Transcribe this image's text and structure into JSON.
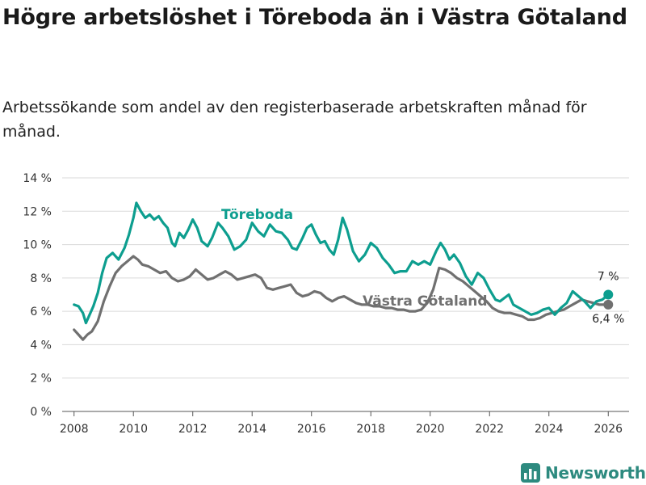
{
  "colors": {
    "toreboda": "#0d9e8f",
    "vastra": "#707070",
    "grid": "#d9d9d9",
    "axis": "#555555",
    "brand": "#2d8a7f"
  },
  "brand": {
    "name": "Newsworthy",
    "icon": "bar-chart-icon"
  },
  "chart_data": {
    "type": "line",
    "title": "Högre arbetslöshet i Töreboda än i Västra Götaland",
    "subtitle": "Arbetssökande som andel av den registerbaserade arbetskraften månad för månad.",
    "xlabel": "",
    "ylabel": "",
    "xlim": [
      2007.6,
      2026.7
    ],
    "ylim": [
      0,
      14
    ],
    "x_ticks": [
      2008,
      2010,
      2012,
      2014,
      2016,
      2018,
      2020,
      2022,
      2024,
      2026
    ],
    "y_ticks": [
      {
        "value": 0,
        "label": "0 %"
      },
      {
        "value": 2,
        "label": "2 %"
      },
      {
        "value": 4,
        "label": "4 %"
      },
      {
        "value": 6,
        "label": "6 %"
      },
      {
        "value": 8,
        "label": "8 %"
      },
      {
        "value": 10,
        "label": "10 %"
      },
      {
        "value": 12,
        "label": "12 %"
      },
      {
        "value": 14,
        "label": "14 %"
      }
    ],
    "grid": true,
    "series": [
      {
        "name": "Töreboda",
        "color": "#0d9e8f",
        "end_label": "7 %",
        "x": [
          2008.0,
          2008.15,
          2008.3,
          2008.4,
          2008.5,
          2008.65,
          2008.8,
          2008.95,
          2009.1,
          2009.3,
          2009.5,
          2009.7,
          2009.85,
          2010.0,
          2010.1,
          2010.25,
          2010.4,
          2010.55,
          2010.7,
          2010.85,
          2011.0,
          2011.15,
          2011.3,
          2011.4,
          2011.55,
          2011.7,
          2011.85,
          2012.0,
          2012.15,
          2012.3,
          2012.5,
          2012.65,
          2012.85,
          2013.0,
          2013.2,
          2013.4,
          2013.6,
          2013.8,
          2014.0,
          2014.2,
          2014.4,
          2014.6,
          2014.8,
          2015.0,
          2015.2,
          2015.35,
          2015.5,
          2015.7,
          2015.85,
          2016.0,
          2016.15,
          2016.3,
          2016.45,
          2016.6,
          2016.75,
          2016.9,
          2017.05,
          2017.2,
          2017.4,
          2017.6,
          2017.8,
          2018.0,
          2018.2,
          2018.4,
          2018.6,
          2018.8,
          2019.0,
          2019.2,
          2019.4,
          2019.6,
          2019.8,
          2020.0,
          2020.2,
          2020.35,
          2020.5,
          2020.65,
          2020.8,
          2021.0,
          2021.2,
          2021.4,
          2021.6,
          2021.8,
          2022.0,
          2022.2,
          2022.35,
          2022.5,
          2022.65,
          2022.8,
          2023.0,
          2023.2,
          2023.4,
          2023.6,
          2023.8,
          2024.0,
          2024.2,
          2024.4,
          2024.6,
          2024.8,
          2025.0,
          2025.2,
          2025.4,
          2025.6,
          2025.8,
          2026.0
        ],
        "y": [
          6.4,
          6.3,
          5.9,
          5.3,
          5.7,
          6.3,
          7.1,
          8.3,
          9.2,
          9.5,
          9.1,
          9.8,
          10.6,
          11.6,
          12.5,
          12.0,
          11.6,
          11.8,
          11.5,
          11.7,
          11.3,
          11.0,
          10.1,
          9.9,
          10.7,
          10.4,
          10.9,
          11.5,
          11.0,
          10.2,
          9.9,
          10.4,
          11.3,
          11.0,
          10.5,
          9.7,
          9.9,
          10.3,
          11.3,
          10.8,
          10.5,
          11.2,
          10.8,
          10.7,
          10.3,
          9.8,
          9.7,
          10.4,
          11.0,
          11.2,
          10.6,
          10.1,
          10.2,
          9.7,
          9.4,
          10.3,
          11.6,
          10.9,
          9.6,
          9.0,
          9.4,
          10.1,
          9.8,
          9.2,
          8.8,
          8.3,
          8.4,
          8.4,
          9.0,
          8.8,
          9.0,
          8.8,
          9.6,
          10.1,
          9.7,
          9.1,
          9.4,
          8.9,
          8.1,
          7.6,
          8.3,
          8.0,
          7.3,
          6.7,
          6.6,
          6.8,
          7.0,
          6.4,
          6.2,
          6.0,
          5.8,
          5.9,
          6.1,
          6.2,
          5.8,
          6.2,
          6.5,
          7.2,
          6.9,
          6.6,
          6.2,
          6.6,
          6.7,
          7.0
        ]
      },
      {
        "name": "Västra Götaland",
        "color": "#707070",
        "end_label": "6,4 %",
        "x": [
          2008.0,
          2008.15,
          2008.3,
          2008.45,
          2008.6,
          2008.8,
          2009.0,
          2009.2,
          2009.4,
          2009.6,
          2009.8,
          2010.0,
          2010.15,
          2010.3,
          2010.5,
          2010.7,
          2010.9,
          2011.1,
          2011.3,
          2011.5,
          2011.7,
          2011.9,
          2012.1,
          2012.3,
          2012.5,
          2012.7,
          2012.9,
          2013.1,
          2013.3,
          2013.5,
          2013.7,
          2013.9,
          2014.1,
          2014.3,
          2014.5,
          2014.7,
          2014.9,
          2015.1,
          2015.3,
          2015.5,
          2015.7,
          2015.9,
          2016.1,
          2016.3,
          2016.5,
          2016.7,
          2016.9,
          2017.1,
          2017.3,
          2017.5,
          2017.7,
          2017.9,
          2018.1,
          2018.3,
          2018.5,
          2018.7,
          2018.9,
          2019.1,
          2019.3,
          2019.5,
          2019.7,
          2019.9,
          2020.1,
          2020.3,
          2020.5,
          2020.7,
          2020.9,
          2021.1,
          2021.3,
          2021.5,
          2021.7,
          2021.9,
          2022.1,
          2022.3,
          2022.5,
          2022.7,
          2022.9,
          2023.1,
          2023.3,
          2023.5,
          2023.7,
          2023.9,
          2024.1,
          2024.3,
          2024.5,
          2024.7,
          2024.9,
          2025.1,
          2025.3,
          2025.5,
          2025.7,
          2025.9,
          2026.0
        ],
        "y": [
          4.9,
          4.6,
          4.3,
          4.6,
          4.8,
          5.4,
          6.6,
          7.5,
          8.3,
          8.7,
          9.0,
          9.3,
          9.1,
          8.8,
          8.7,
          8.5,
          8.3,
          8.4,
          8.0,
          7.8,
          7.9,
          8.1,
          8.5,
          8.2,
          7.9,
          8.0,
          8.2,
          8.4,
          8.2,
          7.9,
          8.0,
          8.1,
          8.2,
          8.0,
          7.4,
          7.3,
          7.4,
          7.5,
          7.6,
          7.1,
          6.9,
          7.0,
          7.2,
          7.1,
          6.8,
          6.6,
          6.8,
          6.9,
          6.7,
          6.5,
          6.4,
          6.4,
          6.3,
          6.3,
          6.2,
          6.2,
          6.1,
          6.1,
          6.0,
          6.0,
          6.1,
          6.5,
          7.3,
          8.6,
          8.5,
          8.3,
          8.0,
          7.8,
          7.5,
          7.2,
          6.9,
          6.6,
          6.2,
          6.0,
          5.9,
          5.9,
          5.8,
          5.7,
          5.5,
          5.5,
          5.6,
          5.8,
          5.9,
          6.0,
          6.1,
          6.3,
          6.5,
          6.7,
          6.6,
          6.5,
          6.4,
          6.4,
          6.4
        ]
      }
    ]
  }
}
